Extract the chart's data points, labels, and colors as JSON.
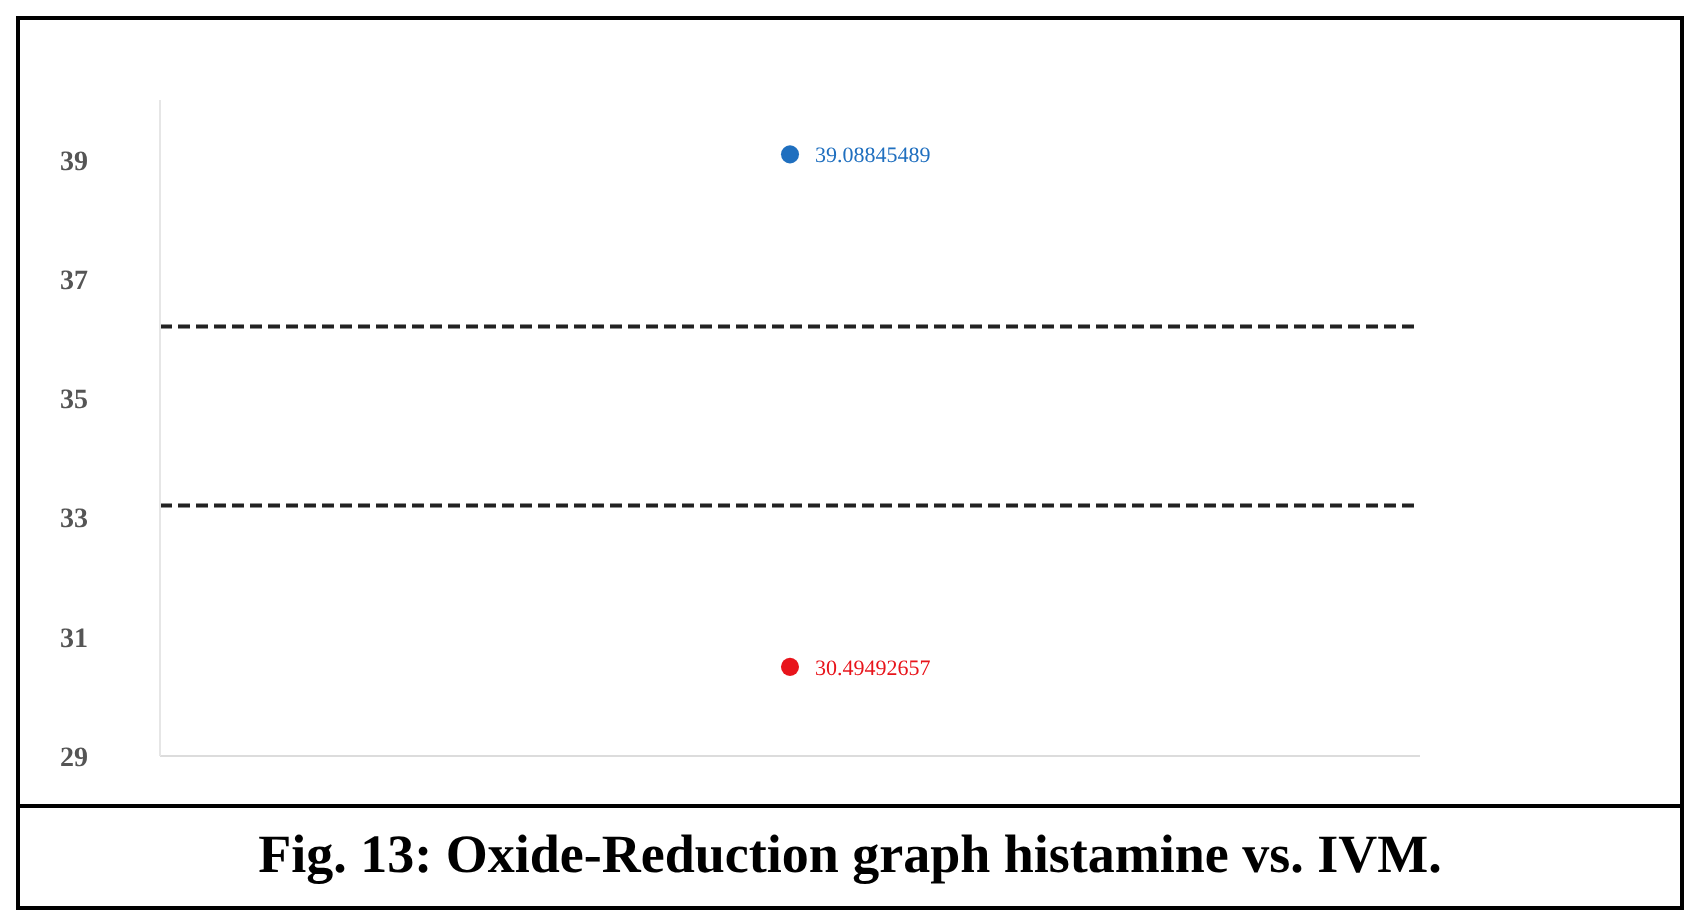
{
  "chart_data": {
    "type": "scatter",
    "title": "Fig. 13: Oxide-Reduction graph histamine vs. IVM.",
    "categories": [
      null
    ],
    "series": [
      {
        "color": "#1f6fbf",
        "values": [
          39.08845489
        ]
      },
      {
        "color": "#e8141b",
        "values": [
          30.49492657
        ]
      }
    ],
    "ylim": [
      29,
      40
    ],
    "yticks": [
      29,
      31,
      33,
      35,
      37,
      39
    ],
    "ref_lines": [
      {
        "axis": "y",
        "value": 36.2,
        "color": "#222222",
        "line_style": "dashed"
      },
      {
        "axis": "y",
        "value": 33.2,
        "color": "#222222",
        "line_style": "dashed"
      }
    ],
    "data_labels": true,
    "marker": "circle",
    "grid": false,
    "tick_labels": "y"
  }
}
